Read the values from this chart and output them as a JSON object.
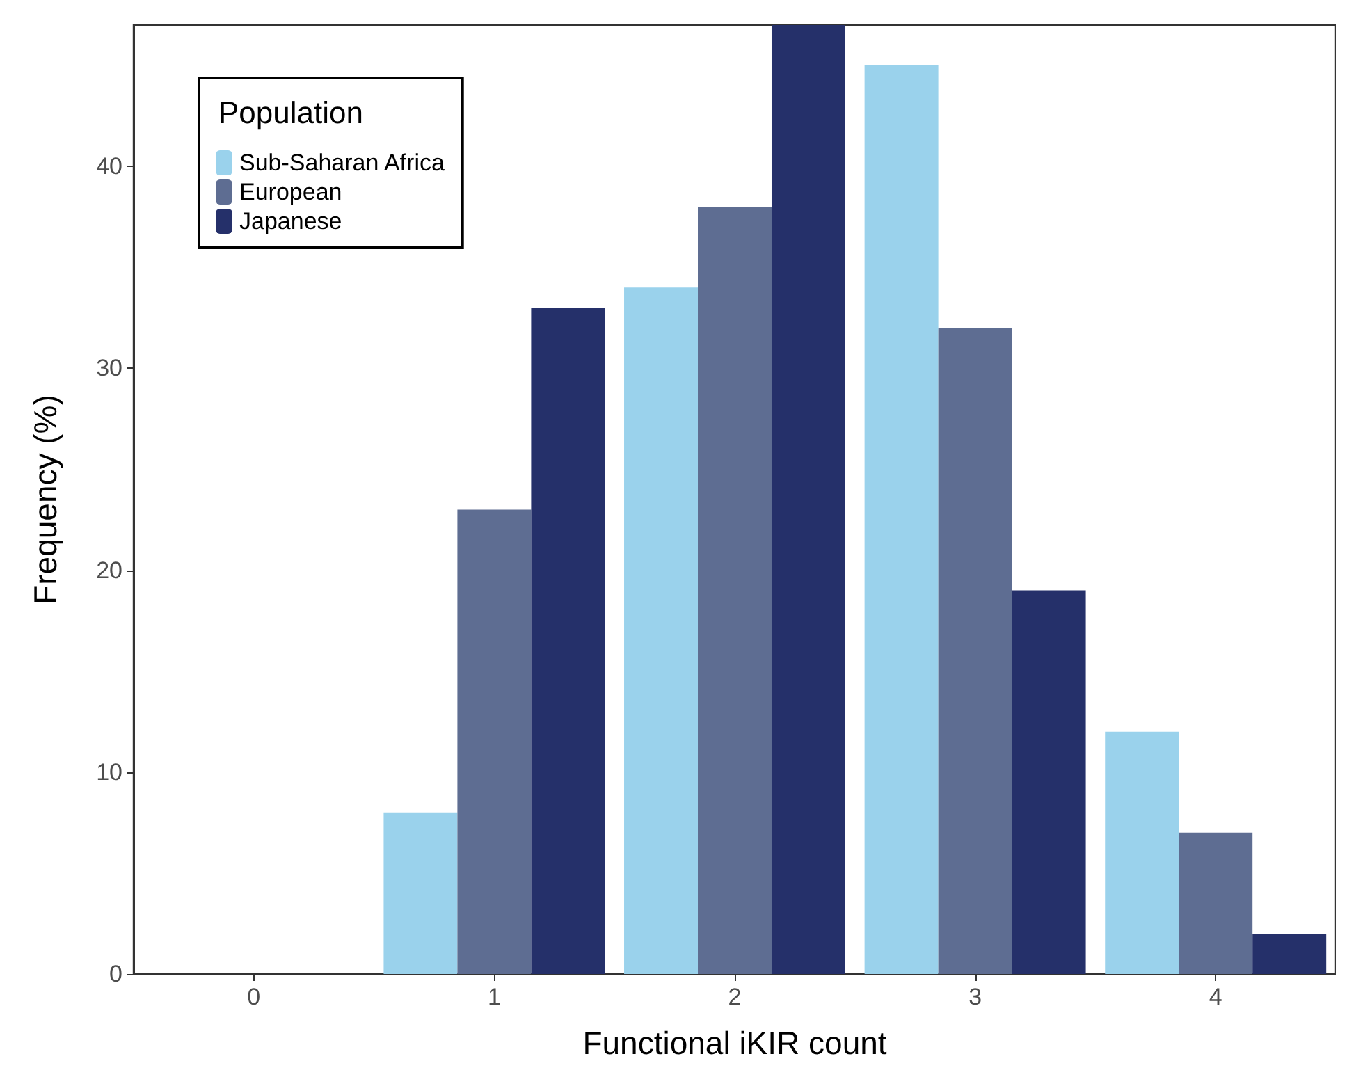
{
  "chart_data": {
    "type": "bar",
    "xlabel": "Functional iKIR count",
    "ylabel": "Frequency (%)",
    "legend_title": "Population",
    "categories": [
      "0",
      "1",
      "2",
      "3",
      "4"
    ],
    "series": [
      {
        "name": "Sub-Saharan Africa",
        "color": "#9ad2ec",
        "values": [
          0,
          8,
          34,
          45,
          12
        ]
      },
      {
        "name": "European",
        "color": "#5e6d92",
        "values": [
          0,
          23,
          38,
          32,
          7
        ]
      },
      {
        "name": "Japanese",
        "color": "#25306a",
        "values": [
          0,
          33,
          47,
          19,
          2
        ]
      }
    ],
    "ylim": [
      0,
      47
    ],
    "yticks": [
      0,
      10,
      20,
      30,
      40
    ],
    "grid": false,
    "legend": "top left"
  }
}
